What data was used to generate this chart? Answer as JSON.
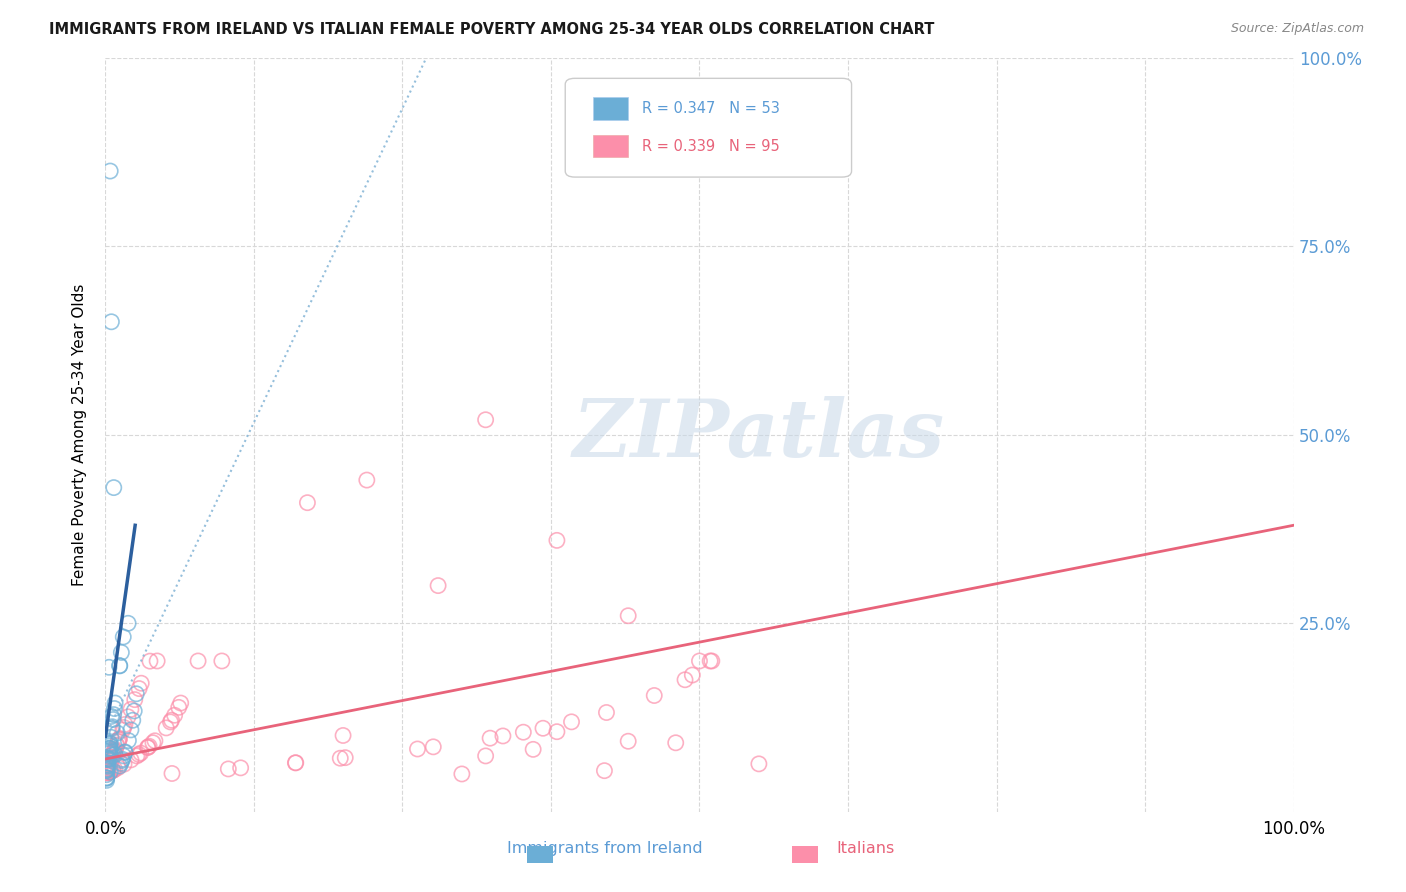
{
  "title": "IMMIGRANTS FROM IRELAND VS ITALIAN FEMALE POVERTY AMONG 25-34 YEAR OLDS CORRELATION CHART",
  "source": "Source: ZipAtlas.com",
  "ylabel": "Female Poverty Among 25-34 Year Olds",
  "legend_ireland": "R = 0.347   N = 53",
  "legend_italian": "R = 0.339   N = 95",
  "legend_label_ireland": "Immigrants from Ireland",
  "legend_label_italian": "Italians",
  "color_ireland": "#6baed6",
  "color_italian": "#fc8faa",
  "trendline_ireland_solid": "#2c5f9e",
  "trendline_ireland_dashed": "#8ab8d8",
  "trendline_italian": "#e8637a",
  "watermark": "ZIPatlas",
  "background": "#ffffff",
  "xlim": [
    0.0,
    1.0
  ],
  "ylim": [
    0.0,
    1.0
  ],
  "grid_color": "#d8d8d8",
  "right_tick_color": "#5b9bd5"
}
